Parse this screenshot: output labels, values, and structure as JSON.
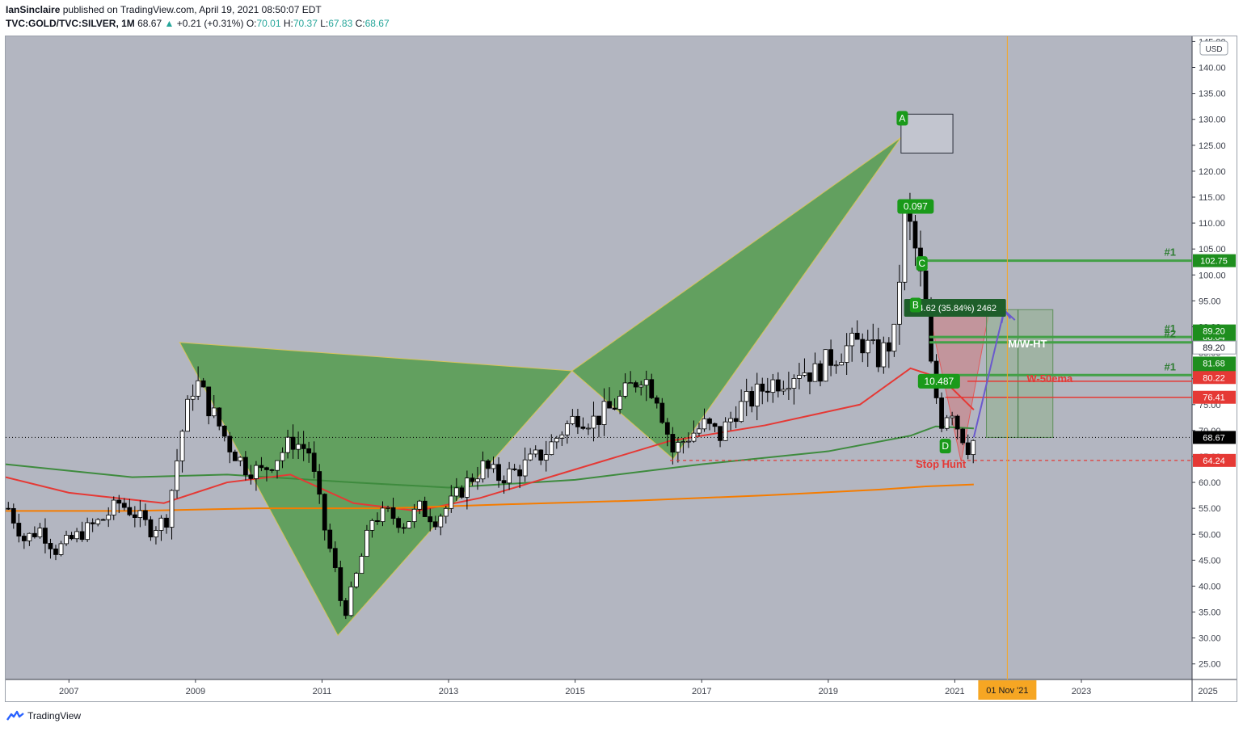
{
  "header": {
    "author": "IanSinclaire",
    "published": "published on TradingView.com, April 19, 2021 08:50:07 EDT",
    "symbol": "TVC:GOLD/TVC:SILVER, 1M",
    "last": "68.67",
    "change_arrow": "▲",
    "change": "+0.21 (+0.31%)",
    "o_label": "O:",
    "o": "70.01",
    "h_label": "H:",
    "h": "70.37",
    "l_label": "L:",
    "l": "67.83",
    "c_label": "C:",
    "c": "68.67"
  },
  "footer": {
    "brand": "TradingView",
    "logo_icon": "tradingview-logo-icon"
  },
  "colors": {
    "background": "#b3b6c1",
    "pattern_fill": "#4c9a44",
    "ema_green": "#3e8b3e",
    "ema_red": "#e53935",
    "ema_orange": "#f57c00",
    "label_green": "#1e8e1e",
    "label_red": "#e53935",
    "target_line": "#43a047",
    "time_marker": "#f6a623",
    "projection": "#6a5acd"
  },
  "chart_data": {
    "type": "candlestick",
    "currency": "USD",
    "last_price": 68.67,
    "ylim": [
      22,
      146
    ],
    "xlim": [
      2006.0,
      2024.75
    ],
    "y_ticks": [
      "145.00",
      "140.00",
      "135.00",
      "130.00",
      "125.00",
      "120.00",
      "115.00",
      "110.00",
      "105.00",
      "100.00",
      "95.00",
      "90.00",
      "85.00",
      "80.00",
      "75.00",
      "70.00",
      "65.00",
      "60.00",
      "55.00",
      "50.00",
      "45.00",
      "40.00",
      "35.00",
      "30.00",
      "25.00"
    ],
    "x_ticks": [
      {
        "t": 2007,
        "label": "2007"
      },
      {
        "t": 2009,
        "label": "2009"
      },
      {
        "t": 2011,
        "label": "2011"
      },
      {
        "t": 2013,
        "label": "2013"
      },
      {
        "t": 2015,
        "label": "2015"
      },
      {
        "t": 2017,
        "label": "2017"
      },
      {
        "t": 2019,
        "label": "2019"
      },
      {
        "t": 2021,
        "label": "2021"
      },
      {
        "t": 2023,
        "label": "2023"
      },
      {
        "t": 2025,
        "label": "2025"
      }
    ],
    "time_marker": {
      "t": 2021.83,
      "label": "01 Nov '21"
    },
    "price_path": [
      [
        2006.0,
        55
      ],
      [
        2006.25,
        49
      ],
      [
        2006.5,
        51
      ],
      [
        2006.75,
        47
      ],
      [
        2007.0,
        49
      ],
      [
        2007.25,
        51
      ],
      [
        2007.5,
        53
      ],
      [
        2007.75,
        56
      ],
      [
        2008.0,
        54
      ],
      [
        2008.25,
        51
      ],
      [
        2008.5,
        53
      ],
      [
        2008.75,
        70
      ],
      [
        2008.95,
        80
      ],
      [
        2009.2,
        74
      ],
      [
        2009.5,
        67
      ],
      [
        2009.75,
        63
      ],
      [
        2010.0,
        62
      ],
      [
        2010.25,
        65
      ],
      [
        2010.5,
        68
      ],
      [
        2010.75,
        66
      ],
      [
        2011.0,
        51
      ],
      [
        2011.15,
        44
      ],
      [
        2011.3,
        34
      ],
      [
        2011.5,
        42
      ],
      [
        2011.75,
        53
      ],
      [
        2012.0,
        54
      ],
      [
        2012.25,
        52
      ],
      [
        2012.5,
        55
      ],
      [
        2012.75,
        53
      ],
      [
        2013.0,
        56
      ],
      [
        2013.25,
        60
      ],
      [
        2013.5,
        63
      ],
      [
        2013.75,
        61
      ],
      [
        2014.0,
        62
      ],
      [
        2014.25,
        64
      ],
      [
        2014.5,
        66
      ],
      [
        2014.75,
        70
      ],
      [
        2015.0,
        73
      ],
      [
        2015.25,
        72
      ],
      [
        2015.5,
        74
      ],
      [
        2015.75,
        77
      ],
      [
        2016.0,
        81
      ],
      [
        2016.25,
        77
      ],
      [
        2016.5,
        66
      ],
      [
        2016.75,
        69
      ],
      [
        2017.0,
        71
      ],
      [
        2017.25,
        69
      ],
      [
        2017.5,
        74
      ],
      [
        2017.75,
        76
      ],
      [
        2018.0,
        79
      ],
      [
        2018.25,
        80
      ],
      [
        2018.5,
        82
      ],
      [
        2018.75,
        81
      ],
      [
        2019.0,
        84
      ],
      [
        2019.25,
        86
      ],
      [
        2019.5,
        87
      ],
      [
        2019.75,
        84
      ],
      [
        2020.0,
        88
      ],
      [
        2020.17,
        112
      ],
      [
        2020.3,
        107
      ],
      [
        2020.45,
        97
      ],
      [
        2020.6,
        80
      ],
      [
        2020.75,
        72
      ],
      [
        2020.9,
        75
      ],
      [
        2021.0,
        71
      ],
      [
        2021.17,
        67
      ],
      [
        2021.3,
        68.67
      ]
    ],
    "emas": [
      {
        "color_key": "ema_green",
        "points": [
          [
            2006.0,
            63.5
          ],
          [
            2008.0,
            61
          ],
          [
            2009.5,
            61.5
          ],
          [
            2011.5,
            60
          ],
          [
            2013.0,
            59
          ],
          [
            2015.0,
            60.5
          ],
          [
            2017.0,
            63.5
          ],
          [
            2019.0,
            66
          ],
          [
            2020.3,
            69
          ],
          [
            2020.7,
            70.8
          ],
          [
            2021.3,
            70.4
          ]
        ]
      },
      {
        "color_key": "ema_red",
        "points": [
          [
            2006.0,
            61
          ],
          [
            2007.0,
            58
          ],
          [
            2008.5,
            56
          ],
          [
            2009.5,
            60
          ],
          [
            2010.5,
            61.5
          ],
          [
            2011.5,
            56
          ],
          [
            2012.5,
            54.5
          ],
          [
            2013.5,
            57
          ],
          [
            2015.0,
            62.5
          ],
          [
            2016.5,
            68
          ],
          [
            2018.0,
            71
          ],
          [
            2019.5,
            75
          ],
          [
            2020.3,
            82
          ],
          [
            2020.8,
            80
          ],
          [
            2021.3,
            74
          ]
        ]
      },
      {
        "color_key": "ema_orange",
        "points": [
          [
            2006.0,
            54.5
          ],
          [
            2008.0,
            54.5
          ],
          [
            2010.0,
            55
          ],
          [
            2012.0,
            55
          ],
          [
            2014.0,
            55.8
          ],
          [
            2016.0,
            56.5
          ],
          [
            2018.0,
            57.5
          ],
          [
            2019.8,
            58.6
          ],
          [
            2020.5,
            59.2
          ],
          [
            2021.3,
            59.6
          ]
        ]
      }
    ],
    "pattern": {
      "points": [
        [
          2008.75,
          87
        ],
        [
          2011.25,
          30.5
        ],
        [
          2014.95,
          81.5
        ],
        [
          2016.55,
          64.5
        ],
        [
          2020.15,
          126.5
        ],
        [
          2020.6,
          85
        ],
        [
          2020.7,
          76
        ],
        [
          2020.85,
          69
        ],
        [
          2021.1,
          63.5
        ]
      ],
      "triangles": [
        [
          0,
          1,
          2
        ],
        [
          2,
          3,
          4
        ]
      ],
      "labels": [
        {
          "text": "A",
          "t": 2020.17,
          "v": 130.2
        },
        {
          "text": "B",
          "t": 2020.38,
          "v": 94.2
        },
        {
          "text": "C",
          "t": 2020.48,
          "v": 102.2
        },
        {
          "text": "D",
          "t": 2020.85,
          "v": 67.0
        },
        {
          "text": "0.097",
          "t": 2020.38,
          "v": 113.2
        },
        {
          "text": "10.487",
          "t": 2020.75,
          "v": 79.5
        }
      ]
    },
    "levels": [
      {
        "v": 102.75,
        "label": "102.75",
        "tag": "#1",
        "t_start": 2020.48,
        "color_key": "target_line"
      },
      {
        "v": 88.04,
        "label": "88.04",
        "tag": "#1",
        "t_start": 2020.6,
        "color_key": "target_line"
      },
      {
        "v": 87.0,
        "label": "",
        "tag": "#2",
        "t_start": 2020.6,
        "color_key": "target_line"
      },
      {
        "v": 80.68,
        "label": "80.68",
        "tag": "#1",
        "t_start": 2020.6,
        "color_key": "target_line"
      },
      {
        "v": 79.5,
        "label": "",
        "tag": "",
        "t_start": 2021.2,
        "color_key": "ema_red"
      },
      {
        "v": 76.41,
        "label": "76.41",
        "tag": "",
        "t_start": 2020.85,
        "color_key": "ema_red"
      }
    ],
    "price_labels": [
      {
        "v": 89.2,
        "text": "89.20",
        "style": "green"
      },
      {
        "v": 86.0,
        "text": "89.20",
        "style": "white"
      },
      {
        "v": 83.0,
        "text": "81.68",
        "style": "green"
      },
      {
        "v": 80.22,
        "text": "80.22",
        "style": "red"
      },
      {
        "v": 68.67,
        "text": "68.67",
        "style": "black"
      },
      {
        "v": 64.24,
        "text": "64.24",
        "style": "red"
      }
    ],
    "text_annotations": [
      {
        "text": "M/W-HT",
        "t": 2022.15,
        "v": 86.0,
        "color": "#ffffff"
      },
      {
        "text": "W-50ema",
        "t": 2022.5,
        "v": 79.3,
        "color": "#e53935"
      },
      {
        "text": "Stop Hunt",
        "t": 2020.78,
        "v": 62.8,
        "color": "#e53935"
      }
    ],
    "stop_line": {
      "v": 64.24,
      "t_start": 2016.5
    },
    "measure": {
      "text": "24.62 (35.84%) 2462",
      "t": 2020.25,
      "v": 93.2
    },
    "projection": {
      "points": [
        [
          2021.3,
          68.67
        ],
        [
          2021.78,
          93.2
        ],
        [
          2021.95,
          91.3
        ]
      ]
    },
    "target_box": {
      "t0": 2021.5,
      "t1": 2022.55,
      "v0": 68.67,
      "v1": 93.3
    },
    "top_box": {
      "t0": 2020.15,
      "t1": 2020.97,
      "v0": 123.5,
      "v1": 131.0
    }
  }
}
